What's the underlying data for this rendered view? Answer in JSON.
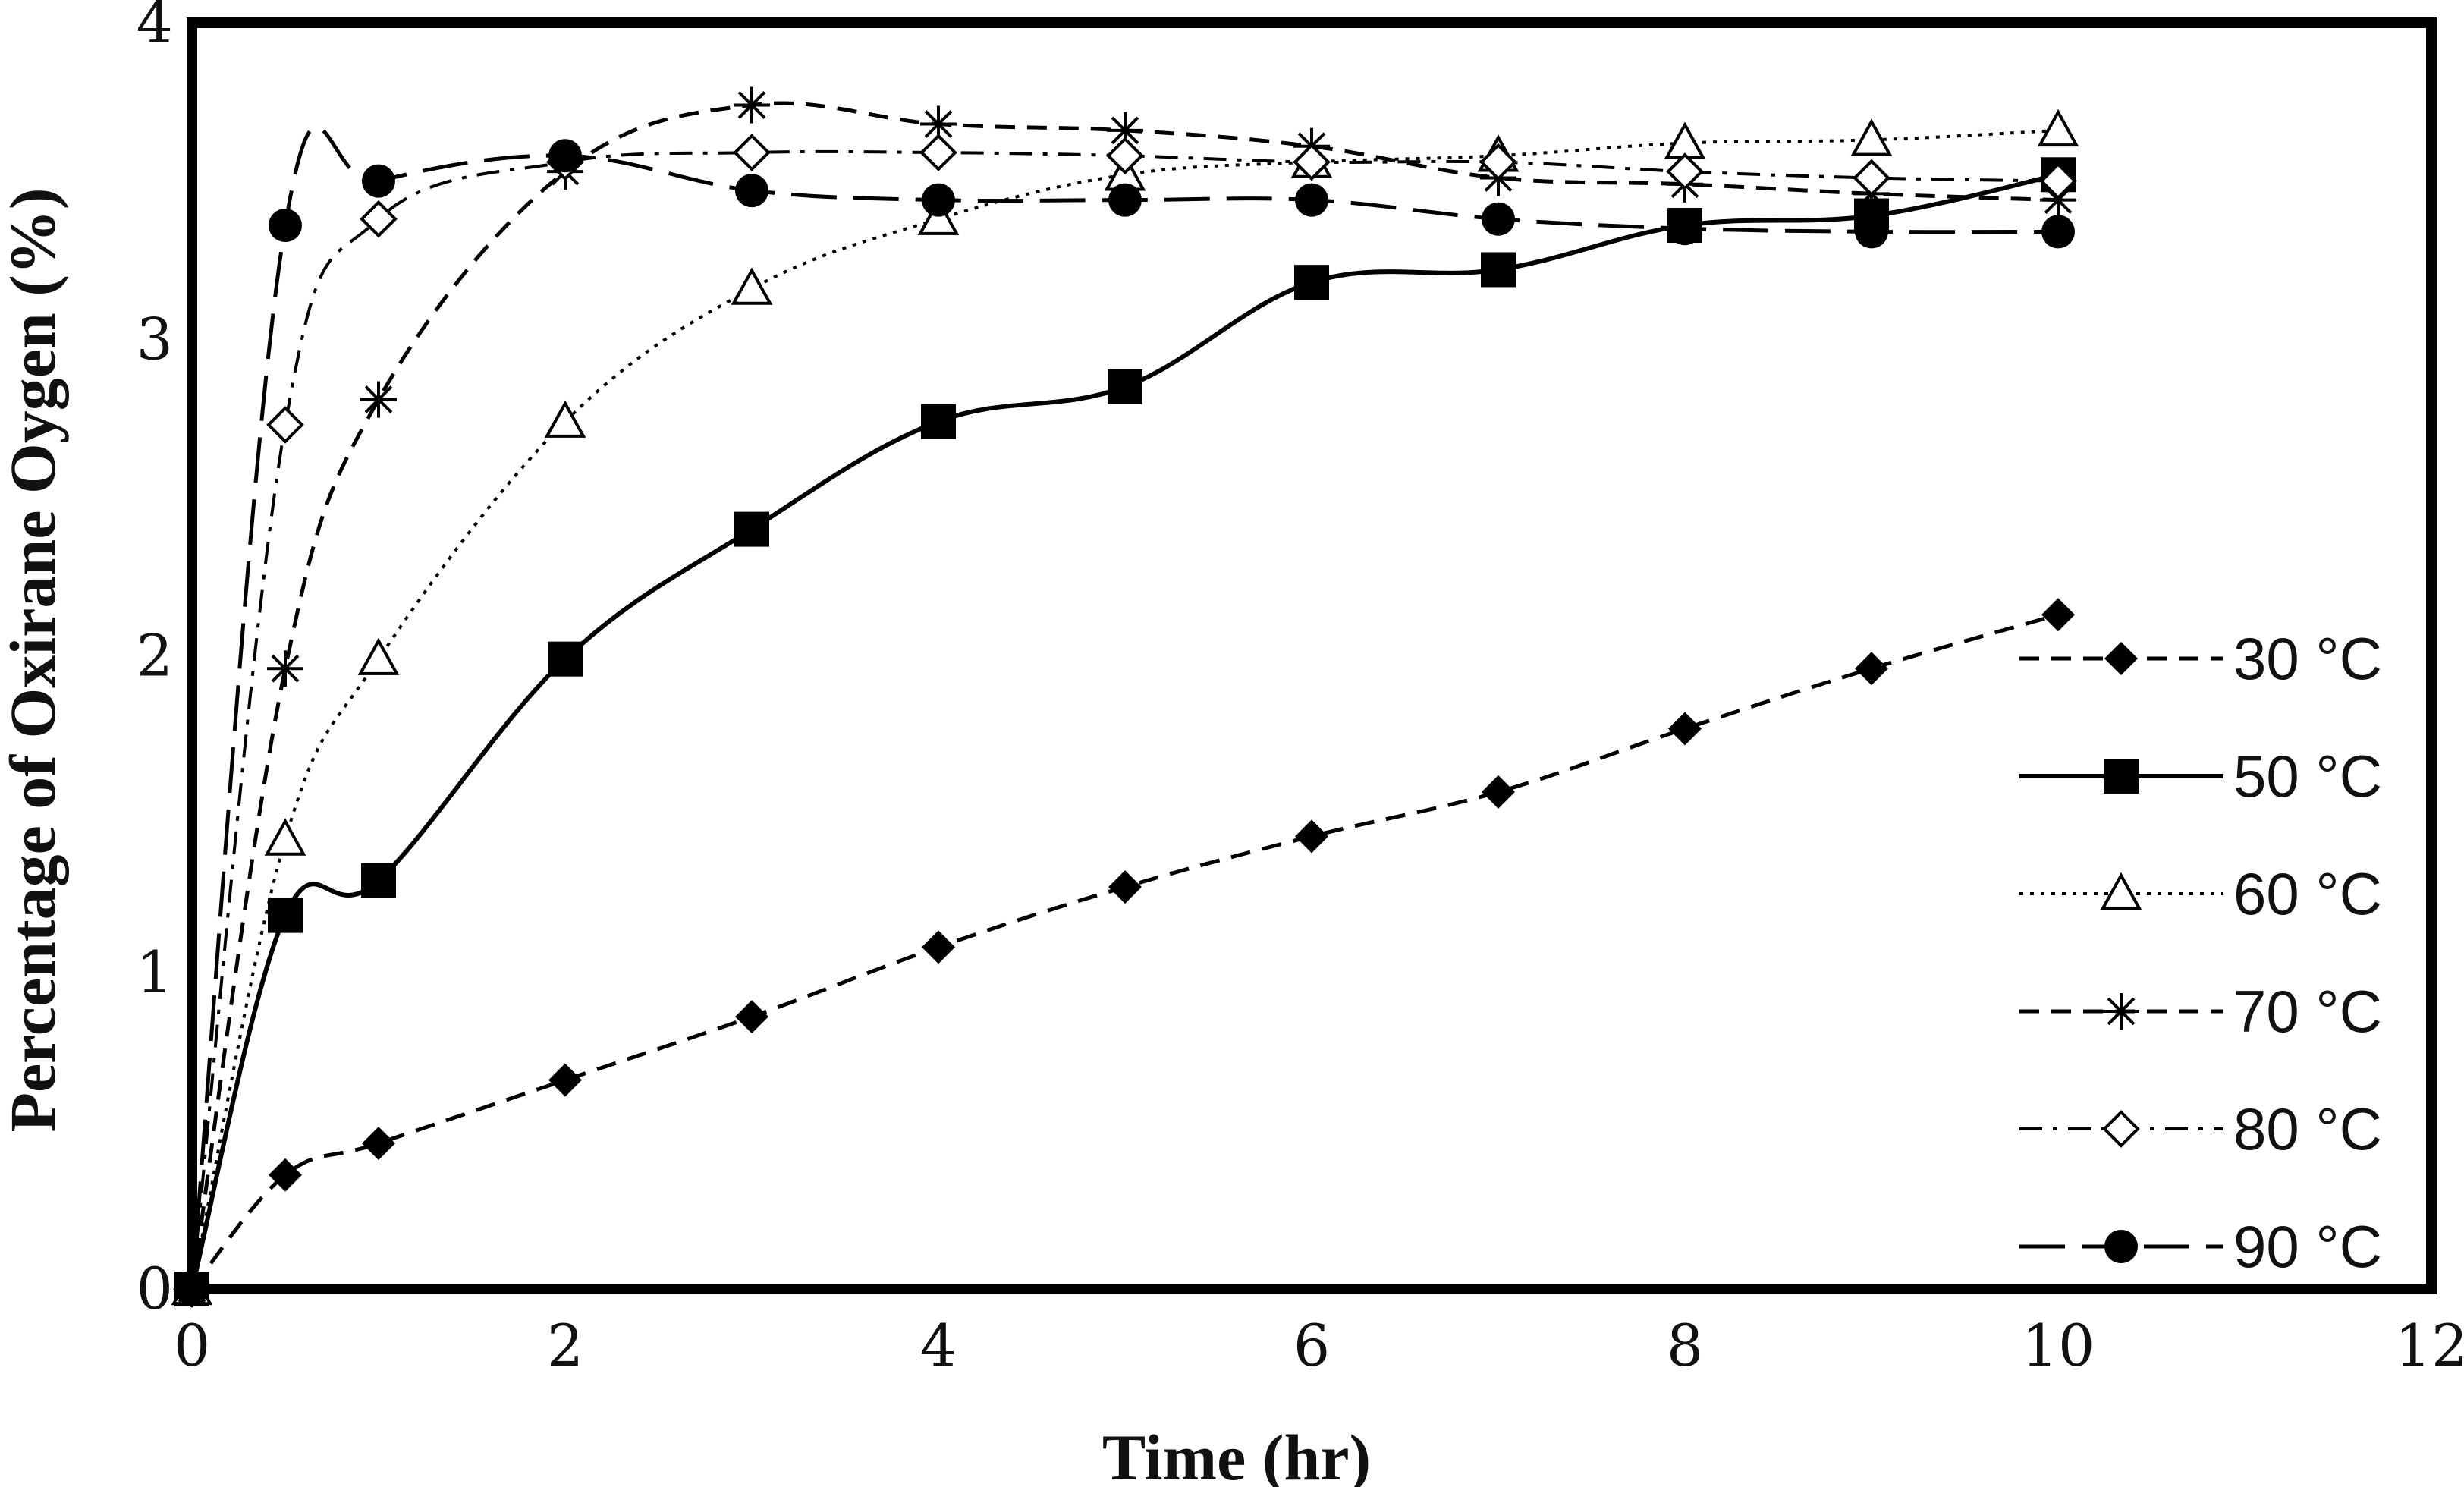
{
  "chart_data": {
    "type": "line",
    "title": "",
    "xlabel": "Time (hr)",
    "ylabel": "Percentage of Oxirane Oygen (%)",
    "xlim": [
      0,
      12
    ],
    "ylim": [
      0,
      4
    ],
    "xticks": [
      "0",
      "2",
      "4",
      "6",
      "8",
      "10",
      "12"
    ],
    "yticks": [
      "0",
      "1",
      "2",
      "3",
      "4"
    ],
    "grid": false,
    "legend_position": "right, lower half inside plot",
    "series": [
      {
        "name": "30 °C",
        "marker": "diamond-filled",
        "line": "dashed",
        "x": [
          0,
          0.5,
          1,
          2,
          3,
          4,
          5,
          6,
          7,
          8,
          9,
          10
        ],
        "y": [
          0,
          0.36,
          0.46,
          0.66,
          0.86,
          1.08,
          1.27,
          1.43,
          1.57,
          1.77,
          1.96,
          2.13
        ]
      },
      {
        "name": "50 °C",
        "marker": "square-filled",
        "line": "solid",
        "x": [
          0,
          0.5,
          1,
          2,
          3,
          4,
          5,
          6,
          7,
          8,
          9,
          10
        ],
        "y": [
          0,
          1.18,
          1.29,
          1.99,
          2.4,
          2.74,
          2.85,
          3.18,
          3.22,
          3.36,
          3.39,
          3.52
        ]
      },
      {
        "name": "60 °C",
        "marker": "triangle-open",
        "line": "dotted",
        "x": [
          0,
          0.5,
          1,
          2,
          3,
          4,
          5,
          6,
          7,
          8,
          9,
          10
        ],
        "y": [
          0,
          1.42,
          1.99,
          2.74,
          3.16,
          3.38,
          3.52,
          3.56,
          3.58,
          3.62,
          3.63,
          3.66
        ]
      },
      {
        "name": "70 °C",
        "marker": "asterisk",
        "line": "dashed",
        "x": [
          0,
          0.5,
          1,
          2,
          3,
          4,
          5,
          6,
          7,
          8,
          9,
          10
        ],
        "y": [
          0,
          1.96,
          2.81,
          3.53,
          3.74,
          3.68,
          3.66,
          3.61,
          3.51,
          3.49,
          3.46,
          3.44
        ]
      },
      {
        "name": "80 °C",
        "marker": "diamond-open",
        "line": "dash-dot",
        "x": [
          0,
          0.5,
          1,
          2,
          3,
          4,
          5,
          6,
          7,
          8,
          9,
          10
        ],
        "y": [
          0,
          2.73,
          3.38,
          3.56,
          3.59,
          3.59,
          3.58,
          3.56,
          3.56,
          3.53,
          3.51,
          3.5
        ]
      },
      {
        "name": "90 °C",
        "marker": "circle-filled",
        "line": "long-dash",
        "x": [
          0,
          0.5,
          1,
          2,
          3,
          4,
          5,
          6,
          7,
          8,
          9,
          10
        ],
        "y": [
          0,
          3.36,
          3.5,
          3.58,
          3.47,
          3.44,
          3.44,
          3.44,
          3.38,
          3.35,
          3.34,
          3.34
        ]
      }
    ]
  }
}
